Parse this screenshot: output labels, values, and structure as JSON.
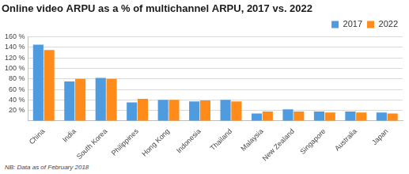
{
  "chart_data": {
    "type": "bar",
    "title": "Online video ARPU as a % of multichannel ARPU, 2017 vs. 2022",
    "footnote": "NB: Data as of February 2018",
    "categories": [
      "China",
      "India",
      "South Korea",
      "Philippines",
      "Hong Kong",
      "Indonesia",
      "Thailand",
      "Malaysia",
      "New Zealand",
      "Singapore",
      "Australia",
      "Japan"
    ],
    "series": [
      {
        "name": "2017",
        "color": "#4f9be0",
        "values": [
          145,
          75,
          82,
          35,
          40,
          37,
          40,
          14,
          22,
          18,
          18,
          16
        ]
      },
      {
        "name": "2022",
        "color": "#ff8c1a",
        "values": [
          135,
          80,
          80,
          42,
          40,
          39,
          37,
          18,
          18,
          16,
          16,
          14
        ]
      }
    ],
    "ylim": [
      0,
      160
    ],
    "yticks": [
      {
        "value": 20,
        "label": "20 %"
      },
      {
        "value": 40,
        "label": "40 %"
      },
      {
        "value": 60,
        "label": "60 %"
      },
      {
        "value": 80,
        "label": "80 %"
      },
      {
        "value": 100,
        "label": "100 %"
      },
      {
        "value": 120,
        "label": "120 %"
      },
      {
        "value": 140,
        "label": "140 %"
      },
      {
        "value": 160,
        "label": "160 %"
      }
    ],
    "grid": true,
    "legend": "upper right"
  }
}
